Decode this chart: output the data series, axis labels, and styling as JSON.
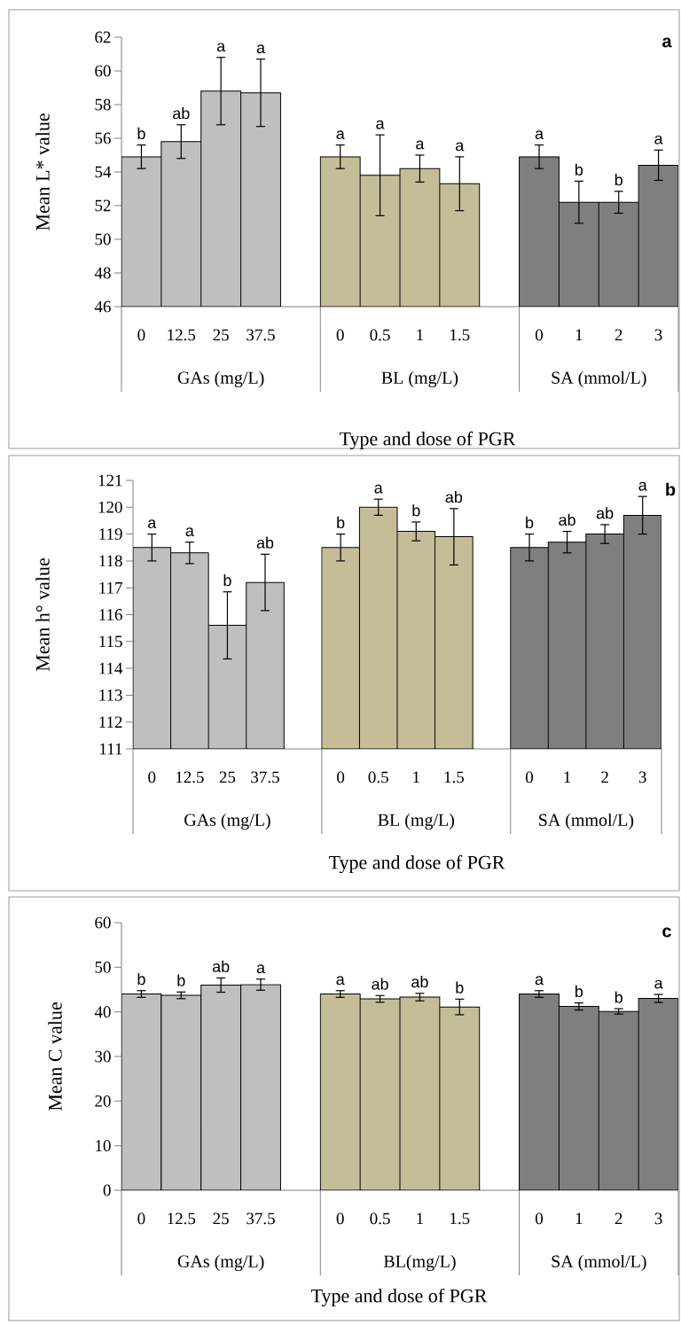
{
  "chart_data": [
    {
      "type": "bar",
      "ylabel": "Mean L* value",
      "xlabel": "Type and dose of PGR",
      "annotations": [
        "a",
        "GAs (mg/L)",
        "BL (mg/L)",
        "SA (mmol/L)"
      ],
      "categories": [
        "0",
        "12.5",
        "25",
        "37.5",
        null,
        "0",
        "0.5",
        "1",
        "1.5",
        null,
        "0",
        "1",
        "2",
        "3"
      ],
      "ylim": [
        46,
        62
      ],
      "yticks": [
        46,
        48,
        50,
        52,
        54,
        56,
        58,
        60,
        62
      ],
      "series": [
        {
          "color": "#bfbfbf",
          "values": [
            54.9,
            55.8,
            58.8,
            58.7,
            null,
            null,
            null,
            null,
            null,
            null,
            null,
            null,
            null,
            null
          ],
          "errors": [
            0.7,
            1.0,
            2.0,
            2.0,
            null,
            null,
            null,
            null,
            null,
            null,
            null,
            null,
            null,
            null
          ],
          "value_labels": [
            "b",
            "ab",
            "a",
            "a",
            null,
            null,
            null,
            null,
            null,
            null,
            null,
            null,
            null,
            null
          ]
        },
        {
          "color": "#c4bd97",
          "values": [
            null,
            null,
            null,
            null,
            null,
            54.9,
            53.8,
            54.2,
            53.3,
            null,
            null,
            null,
            null,
            null
          ],
          "errors": [
            null,
            null,
            null,
            null,
            null,
            0.7,
            2.4,
            0.8,
            1.6,
            null,
            null,
            null,
            null,
            null
          ],
          "value_labels": [
            null,
            null,
            null,
            null,
            null,
            "a",
            "a",
            "a",
            "a",
            null,
            null,
            null,
            null,
            null
          ]
        },
        {
          "color": "#7f7f7f",
          "values": [
            null,
            null,
            null,
            null,
            null,
            null,
            null,
            null,
            null,
            null,
            54.9,
            52.2,
            52.2,
            54.4
          ],
          "errors": [
            null,
            null,
            null,
            null,
            null,
            null,
            null,
            null,
            null,
            null,
            0.7,
            1.25,
            0.65,
            0.9
          ],
          "value_labels": [
            null,
            null,
            null,
            null,
            null,
            null,
            null,
            null,
            null,
            null,
            "a",
            "b",
            "b",
            "a"
          ]
        }
      ]
    },
    {
      "type": "bar",
      "ylabel": "Mean h° value",
      "xlabel": "Type and dose of PGR",
      "annotations": [
        "b",
        "GAs (mg/L)",
        "BL (mg/L)",
        "SA (mmol/L)"
      ],
      "categories": [
        "0",
        "12.5",
        "25",
        "37.5",
        null,
        "0",
        "0.5",
        "1",
        "1.5",
        null,
        "0",
        "1",
        "2",
        "3"
      ],
      "ylim": [
        111,
        121
      ],
      "yticks": [
        111,
        112,
        113,
        114,
        115,
        116,
        117,
        118,
        119,
        120,
        121
      ],
      "series": [
        {
          "color": "#bfbfbf",
          "values": [
            118.5,
            118.3,
            115.6,
            117.2,
            null,
            null,
            null,
            null,
            null,
            null,
            null,
            null,
            null,
            null
          ],
          "errors": [
            0.5,
            0.4,
            1.25,
            1.05,
            null,
            null,
            null,
            null,
            null,
            null,
            null,
            null,
            null,
            null
          ],
          "value_labels": [
            "a",
            "a",
            "b",
            "ab",
            null,
            null,
            null,
            null,
            null,
            null,
            null,
            null,
            null,
            null
          ]
        },
        {
          "color": "#c4bd97",
          "values": [
            null,
            null,
            null,
            null,
            null,
            118.5,
            120.0,
            119.1,
            118.9,
            null,
            null,
            null,
            null,
            null
          ],
          "errors": [
            null,
            null,
            null,
            null,
            null,
            0.5,
            0.3,
            0.35,
            1.05,
            null,
            null,
            null,
            null,
            null
          ],
          "value_labels": [
            null,
            null,
            null,
            null,
            null,
            "b",
            "a",
            "b",
            "ab",
            null,
            null,
            null,
            null,
            null
          ]
        },
        {
          "color": "#7f7f7f",
          "values": [
            null,
            null,
            null,
            null,
            null,
            null,
            null,
            null,
            null,
            null,
            118.5,
            118.7,
            119.0,
            119.7
          ],
          "errors": [
            null,
            null,
            null,
            null,
            null,
            null,
            null,
            null,
            null,
            null,
            0.5,
            0.4,
            0.35,
            0.7
          ],
          "value_labels": [
            null,
            null,
            null,
            null,
            null,
            null,
            null,
            null,
            null,
            null,
            "b",
            "ab",
            "ab",
            "a"
          ]
        }
      ]
    },
    {
      "type": "bar",
      "ylabel": "Mean C value",
      "xlabel": "Type and dose of PGR",
      "annotations": [
        "c",
        "GAs (mg/L)",
        "BL(mg/L)",
        "SA (mmol/L)"
      ],
      "categories": [
        "0",
        "12.5",
        "25",
        "37.5",
        null,
        "0",
        "0.5",
        "1",
        "1.5",
        null,
        "0",
        "1",
        "2",
        "3"
      ],
      "ylim": [
        0,
        60
      ],
      "yticks": [
        0,
        10,
        20,
        30,
        40,
        50,
        60
      ],
      "series": [
        {
          "color": "#bfbfbf",
          "values": [
            44.0,
            43.7,
            46.0,
            46.1,
            null,
            null,
            null,
            null,
            null,
            null,
            null,
            null,
            null,
            null
          ],
          "errors": [
            0.75,
            0.75,
            1.6,
            1.25,
            null,
            null,
            null,
            null,
            null,
            null,
            null,
            null,
            null,
            null
          ],
          "value_labels": [
            "b",
            "b",
            "ab",
            "a",
            null,
            null,
            null,
            null,
            null,
            null,
            null,
            null,
            null,
            null
          ]
        },
        {
          "color": "#c4bd97",
          "values": [
            null,
            null,
            null,
            null,
            null,
            44.0,
            42.9,
            43.3,
            41.1,
            null,
            null,
            null,
            null,
            null
          ],
          "errors": [
            null,
            null,
            null,
            null,
            null,
            0.75,
            0.75,
            0.85,
            1.75,
            null,
            null,
            null,
            null,
            null
          ],
          "value_labels": [
            null,
            null,
            null,
            null,
            null,
            "a",
            "ab",
            "ab",
            "b",
            null,
            null,
            null,
            null,
            null
          ]
        },
        {
          "color": "#7f7f7f",
          "values": [
            null,
            null,
            null,
            null,
            null,
            null,
            null,
            null,
            null,
            null,
            44.0,
            41.2,
            40.1,
            43.0
          ],
          "errors": [
            null,
            null,
            null,
            null,
            null,
            null,
            null,
            null,
            null,
            null,
            0.75,
            0.8,
            0.6,
            0.9
          ],
          "value_labels": [
            null,
            null,
            null,
            null,
            null,
            null,
            null,
            null,
            null,
            null,
            "a",
            "b",
            "b",
            "a"
          ]
        }
      ]
    }
  ]
}
